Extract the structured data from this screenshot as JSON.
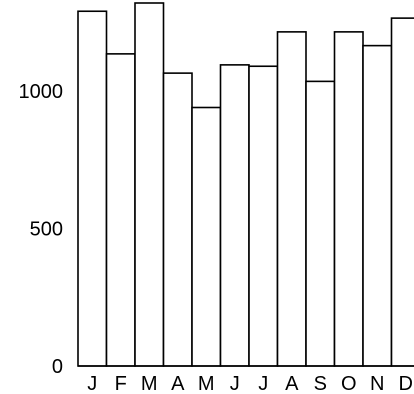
{
  "chart_data": {
    "type": "bar",
    "title": "",
    "xlabel": "",
    "ylabel": "",
    "categories": [
      "J",
      "F",
      "M",
      "A",
      "M",
      "J",
      "J",
      "A",
      "S",
      "O",
      "N",
      "D"
    ],
    "values": [
      1290,
      1135,
      1320,
      1065,
      940,
      1095,
      1090,
      1215,
      1035,
      1215,
      1165,
      1265
    ],
    "ylim": [
      0,
      1350
    ],
    "yticks": [
      "0",
      "500",
      "1000"
    ],
    "grid": false,
    "legend": "none",
    "colors": {
      "bar_fill": "#ffffff",
      "bar_stroke": "#000000",
      "text": "#000000"
    }
  }
}
